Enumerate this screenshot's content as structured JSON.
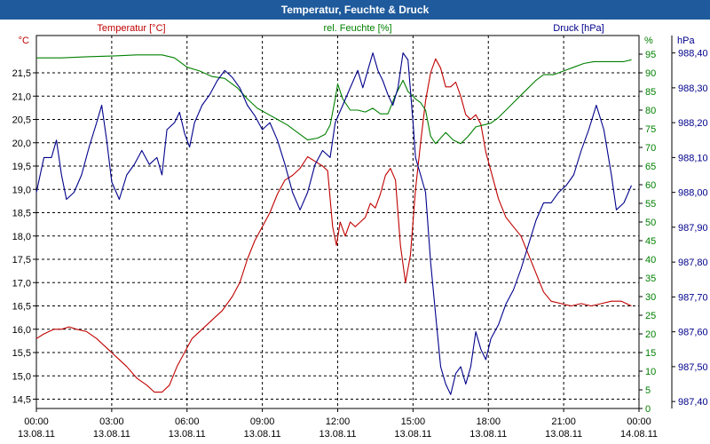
{
  "window": {
    "title": "Temperatur, Feuchte & Druck"
  },
  "chart_data": {
    "type": "line",
    "title": "Temperatur, Feuchte & Druck",
    "grid": true,
    "x_ticks": [
      {
        "time": "00:00",
        "date": "13.08.11"
      },
      {
        "time": "03:00",
        "date": "13.08.11"
      },
      {
        "time": "06:00",
        "date": "13.08.11"
      },
      {
        "time": "09:00",
        "date": "13.08.11"
      },
      {
        "time": "12:00",
        "date": "13.08.11"
      },
      {
        "time": "15:00",
        "date": "13.08.11"
      },
      {
        "time": "18:00",
        "date": "13.08.11"
      },
      {
        "time": "21:00",
        "date": "13.08.11"
      },
      {
        "time": "00:00",
        "date": "14.08.11"
      }
    ],
    "xlim_hours": [
      0,
      24
    ],
    "axes": {
      "temperature": {
        "label": "Temperatur [°C]",
        "unit": "°C",
        "ylim": [
          14.3,
          22.3
        ],
        "ticks": [
          "14,5",
          "15,0",
          "15,5",
          "16,0",
          "16,5",
          "17,0",
          "17,5",
          "18,0",
          "18,5",
          "19,0",
          "19,5",
          "20,0",
          "20,5",
          "21,0",
          "21,5"
        ],
        "color": "#c00000"
      },
      "humidity": {
        "label": "rel. Feuchte [%]",
        "unit": "%",
        "ylim": [
          0,
          100
        ],
        "ticks": [
          "0",
          "5",
          "10",
          "15",
          "20",
          "25",
          "30",
          "35",
          "40",
          "45",
          "50",
          "55",
          "60",
          "65",
          "70",
          "75",
          "80",
          "85",
          "90",
          "95"
        ],
        "color": "#008000"
      },
      "pressure": {
        "label": "Druck [hPa]",
        "unit": "hPa",
        "ylim": [
          987.38,
          988.45
        ],
        "ticks": [
          "987,40",
          "987,50",
          "987,60",
          "987,70",
          "987,80",
          "987,90",
          "988,00",
          "988,10",
          "988,20",
          "988,30",
          "988,40"
        ],
        "color": "#00008b"
      }
    },
    "series": [
      {
        "name": "Temperatur [°C]",
        "axis": "temperature",
        "color": "#c00000",
        "points": [
          [
            0,
            15.8
          ],
          [
            0.3,
            15.9
          ],
          [
            0.7,
            16.0
          ],
          [
            1.0,
            16.0
          ],
          [
            1.3,
            16.05
          ],
          [
            1.6,
            16.0
          ],
          [
            2.0,
            15.95
          ],
          [
            2.4,
            15.8
          ],
          [
            2.8,
            15.6
          ],
          [
            3.2,
            15.4
          ],
          [
            3.6,
            15.2
          ],
          [
            4.0,
            14.95
          ],
          [
            4.4,
            14.8
          ],
          [
            4.7,
            14.65
          ],
          [
            5.0,
            14.65
          ],
          [
            5.3,
            14.8
          ],
          [
            5.6,
            15.2
          ],
          [
            5.9,
            15.5
          ],
          [
            6.2,
            15.8
          ],
          [
            6.6,
            16.0
          ],
          [
            7.0,
            16.2
          ],
          [
            7.4,
            16.4
          ],
          [
            7.8,
            16.7
          ],
          [
            8.1,
            17.0
          ],
          [
            8.4,
            17.5
          ],
          [
            8.7,
            17.9
          ],
          [
            9.0,
            18.2
          ],
          [
            9.3,
            18.5
          ],
          [
            9.6,
            18.9
          ],
          [
            9.9,
            19.2
          ],
          [
            10.2,
            19.3
          ],
          [
            10.5,
            19.45
          ],
          [
            10.8,
            19.7
          ],
          [
            11.1,
            19.6
          ],
          [
            11.4,
            19.5
          ],
          [
            11.6,
            19.4
          ],
          [
            11.8,
            18.2
          ],
          [
            11.95,
            17.8
          ],
          [
            12.1,
            18.3
          ],
          [
            12.3,
            18.0
          ],
          [
            12.5,
            18.3
          ],
          [
            12.7,
            18.2
          ],
          [
            12.9,
            18.3
          ],
          [
            13.1,
            18.4
          ],
          [
            13.3,
            18.7
          ],
          [
            13.5,
            18.6
          ],
          [
            13.7,
            18.9
          ],
          [
            13.9,
            19.3
          ],
          [
            14.1,
            19.45
          ],
          [
            14.3,
            19.2
          ],
          [
            14.5,
            17.8
          ],
          [
            14.7,
            17.0
          ],
          [
            14.9,
            17.6
          ],
          [
            15.1,
            19.0
          ],
          [
            15.3,
            20.0
          ],
          [
            15.5,
            20.9
          ],
          [
            15.7,
            21.5
          ],
          [
            15.9,
            21.8
          ],
          [
            16.1,
            21.6
          ],
          [
            16.3,
            21.2
          ],
          [
            16.5,
            21.2
          ],
          [
            16.7,
            21.3
          ],
          [
            16.9,
            21.0
          ],
          [
            17.1,
            20.6
          ],
          [
            17.3,
            20.5
          ],
          [
            17.5,
            20.6
          ],
          [
            17.7,
            20.4
          ],
          [
            17.9,
            19.8
          ],
          [
            18.1,
            19.4
          ],
          [
            18.4,
            18.8
          ],
          [
            18.7,
            18.4
          ],
          [
            19.0,
            18.2
          ],
          [
            19.3,
            18.0
          ],
          [
            19.6,
            17.6
          ],
          [
            19.9,
            17.2
          ],
          [
            20.2,
            16.8
          ],
          [
            20.5,
            16.6
          ],
          [
            20.9,
            16.55
          ],
          [
            21.3,
            16.5
          ],
          [
            21.7,
            16.55
          ],
          [
            22.1,
            16.5
          ],
          [
            22.5,
            16.55
          ],
          [
            22.9,
            16.6
          ],
          [
            23.3,
            16.6
          ],
          [
            23.7,
            16.5
          ]
        ]
      },
      {
        "name": "rel. Feuchte [%]",
        "axis": "humidity",
        "color": "#008000",
        "points": [
          [
            0,
            94
          ],
          [
            1,
            94
          ],
          [
            2,
            94.3
          ],
          [
            3,
            94.5
          ],
          [
            4,
            94.8
          ],
          [
            5,
            94.8
          ],
          [
            5.5,
            94
          ],
          [
            6,
            91.5
          ],
          [
            6.5,
            90.5
          ],
          [
            7,
            89
          ],
          [
            7.5,
            88.5
          ],
          [
            8,
            86
          ],
          [
            8.4,
            83
          ],
          [
            8.8,
            80.5
          ],
          [
            9.2,
            79
          ],
          [
            9.6,
            77.5
          ],
          [
            10.0,
            76
          ],
          [
            10.4,
            74
          ],
          [
            10.8,
            72
          ],
          [
            11.2,
            72.5
          ],
          [
            11.5,
            73.5
          ],
          [
            11.7,
            76
          ],
          [
            11.9,
            83
          ],
          [
            12.0,
            87
          ],
          [
            12.2,
            83
          ],
          [
            12.5,
            80
          ],
          [
            12.8,
            80
          ],
          [
            13.1,
            79.5
          ],
          [
            13.4,
            80.5
          ],
          [
            13.7,
            79
          ],
          [
            14.0,
            79
          ],
          [
            14.3,
            84
          ],
          [
            14.6,
            88
          ],
          [
            14.8,
            85
          ],
          [
            15.1,
            83
          ],
          [
            15.3,
            82
          ],
          [
            15.5,
            80
          ],
          [
            15.7,
            73
          ],
          [
            15.9,
            71
          ],
          [
            16.1,
            72.5
          ],
          [
            16.3,
            74
          ],
          [
            16.6,
            72
          ],
          [
            16.9,
            71
          ],
          [
            17.2,
            73
          ],
          [
            17.5,
            75.5
          ],
          [
            17.8,
            76
          ],
          [
            18.1,
            76.5
          ],
          [
            18.4,
            78
          ],
          [
            18.7,
            80
          ],
          [
            19.0,
            82
          ],
          [
            19.3,
            84
          ],
          [
            19.6,
            86
          ],
          [
            19.9,
            88
          ],
          [
            20.2,
            89.5
          ],
          [
            20.6,
            89.5
          ],
          [
            21.0,
            90.5
          ],
          [
            21.4,
            91.5
          ],
          [
            21.8,
            92.5
          ],
          [
            22.2,
            93
          ],
          [
            22.6,
            93
          ],
          [
            23.0,
            93
          ],
          [
            23.4,
            93
          ],
          [
            23.7,
            93.5
          ]
        ]
      },
      {
        "name": "Druck [hPa]",
        "axis": "pressure",
        "color": "#00008b",
        "points": [
          [
            0,
            988.0
          ],
          [
            0.3,
            988.1
          ],
          [
            0.6,
            988.1
          ],
          [
            0.8,
            988.15
          ],
          [
            1.0,
            988.05
          ],
          [
            1.2,
            987.98
          ],
          [
            1.5,
            988.0
          ],
          [
            1.8,
            988.05
          ],
          [
            2.1,
            988.13
          ],
          [
            2.4,
            988.2
          ],
          [
            2.6,
            988.25
          ],
          [
            2.8,
            988.15
          ],
          [
            3.0,
            988.03
          ],
          [
            3.3,
            987.98
          ],
          [
            3.6,
            988.05
          ],
          [
            3.9,
            988.08
          ],
          [
            4.2,
            988.12
          ],
          [
            4.5,
            988.08
          ],
          [
            4.8,
            988.1
          ],
          [
            5.0,
            988.05
          ],
          [
            5.2,
            988.18
          ],
          [
            5.5,
            988.2
          ],
          [
            5.7,
            988.23
          ],
          [
            5.9,
            988.17
          ],
          [
            6.1,
            988.13
          ],
          [
            6.3,
            988.2
          ],
          [
            6.6,
            988.25
          ],
          [
            6.9,
            988.28
          ],
          [
            7.2,
            988.32
          ],
          [
            7.5,
            988.35
          ],
          [
            7.8,
            988.33
          ],
          [
            8.1,
            988.3
          ],
          [
            8.4,
            988.25
          ],
          [
            8.7,
            988.22
          ],
          [
            9.0,
            988.18
          ],
          [
            9.3,
            988.2
          ],
          [
            9.6,
            988.15
          ],
          [
            9.9,
            988.08
          ],
          [
            10.2,
            988.0
          ],
          [
            10.5,
            987.95
          ],
          [
            10.8,
            988.0
          ],
          [
            11.1,
            988.08
          ],
          [
            11.4,
            988.12
          ],
          [
            11.7,
            988.1
          ],
          [
            11.9,
            988.2
          ],
          [
            12.2,
            988.25
          ],
          [
            12.5,
            988.3
          ],
          [
            12.8,
            988.35
          ],
          [
            13.0,
            988.3
          ],
          [
            13.2,
            988.35
          ],
          [
            13.4,
            988.4
          ],
          [
            13.6,
            988.35
          ],
          [
            13.8,
            988.32
          ],
          [
            14.0,
            988.28
          ],
          [
            14.2,
            988.25
          ],
          [
            14.4,
            988.3
          ],
          [
            14.6,
            988.4
          ],
          [
            14.8,
            988.38
          ],
          [
            15.0,
            988.2
          ],
          [
            15.1,
            988.1
          ],
          [
            15.3,
            988.05
          ],
          [
            15.5,
            988.0
          ],
          [
            15.7,
            987.8
          ],
          [
            15.9,
            987.65
          ],
          [
            16.1,
            987.5
          ],
          [
            16.3,
            987.45
          ],
          [
            16.5,
            987.42
          ],
          [
            16.7,
            987.48
          ],
          [
            16.9,
            987.5
          ],
          [
            17.1,
            987.45
          ],
          [
            17.3,
            987.5
          ],
          [
            17.5,
            987.6
          ],
          [
            17.7,
            987.55
          ],
          [
            17.9,
            987.52
          ],
          [
            18.1,
            987.58
          ],
          [
            18.4,
            987.62
          ],
          [
            18.7,
            987.68
          ],
          [
            19.0,
            987.72
          ],
          [
            19.3,
            987.78
          ],
          [
            19.6,
            987.85
          ],
          [
            19.9,
            987.92
          ],
          [
            20.2,
            987.97
          ],
          [
            20.5,
            987.97
          ],
          [
            20.8,
            988.0
          ],
          [
            21.1,
            988.02
          ],
          [
            21.4,
            988.05
          ],
          [
            21.7,
            988.12
          ],
          [
            22.0,
            988.18
          ],
          [
            22.3,
            988.25
          ],
          [
            22.6,
            988.18
          ],
          [
            22.9,
            988.05
          ],
          [
            23.1,
            987.95
          ],
          [
            23.4,
            987.97
          ],
          [
            23.7,
            988.02
          ]
        ]
      }
    ]
  }
}
